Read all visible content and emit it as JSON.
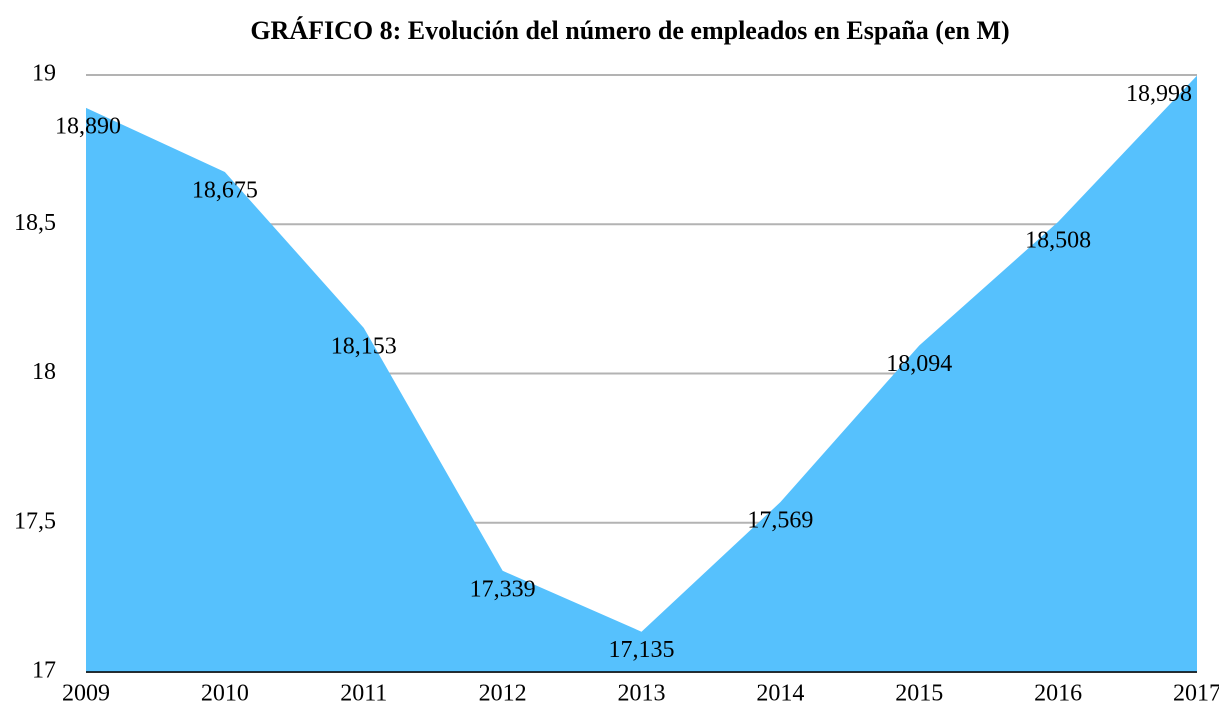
{
  "chart_data": {
    "type": "area",
    "title": "GRÁFICO 8: Evolución del número de empleados en España (en M)",
    "categories": [
      "2009",
      "2010",
      "2011",
      "2012",
      "2013",
      "2014",
      "2015",
      "2016",
      "2017"
    ],
    "values": [
      18.89,
      18.675,
      18.153,
      17.339,
      17.135,
      17.569,
      18.094,
      18.508,
      18.998
    ],
    "value_labels": [
      "18,890",
      "18,675",
      "18,153",
      "17,339",
      "17,135",
      "17,569",
      "18,094",
      "18,508",
      "18,998"
    ],
    "color": "#56c1fd",
    "ylim": [
      17,
      19
    ],
    "yticks": [
      17,
      {
        "value": 17.5,
        "label": "17,5"
      },
      18,
      {
        "value": 18.5,
        "label": "18,5"
      },
      19
    ],
    "grid": true
  }
}
